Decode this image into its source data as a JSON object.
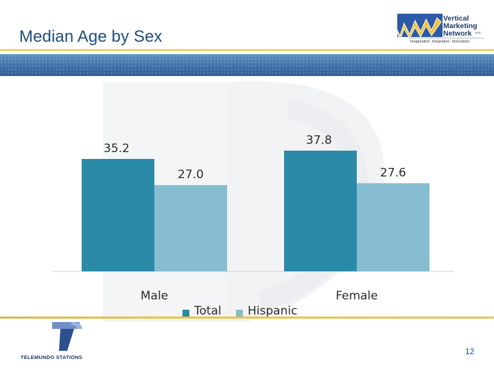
{
  "slide": {
    "title": "Median Age by Sex",
    "page_number": "12"
  },
  "branding": {
    "top_logo": {
      "lines": [
        "Vertical",
        "Marketing",
        "Network"
      ],
      "suffix": "LLC",
      "tagline": "Imagination. Integration. Innovation."
    },
    "bottom_logo": {
      "name": "TELEMUNDO STATIONS"
    }
  },
  "colors": {
    "title": "#1f4e79",
    "total": "#2a8aa8",
    "hispanic": "#86bdd1",
    "accent_rule": "#f1c232",
    "band": "#3d6fa6"
  },
  "chart_data": {
    "type": "bar",
    "categories": [
      "Male",
      "Female"
    ],
    "series": [
      {
        "name": "Total",
        "values": [
          35.2,
          37.8
        ],
        "labels": [
          "35.2",
          "37.8"
        ],
        "color": "#2a8aa8"
      },
      {
        "name": "Hispanic",
        "values": [
          27.0,
          27.6
        ],
        "labels": [
          "27.0",
          "27.6"
        ],
        "color": "#86bdd1"
      }
    ],
    "title": "",
    "xlabel": "",
    "ylabel": "",
    "ylim": [
      0,
      40
    ],
    "grid": false,
    "legend": "bottom"
  }
}
